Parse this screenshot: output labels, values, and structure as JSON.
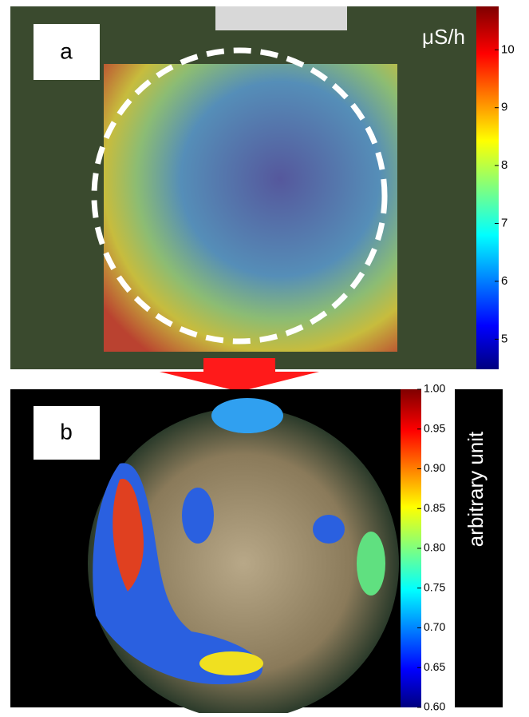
{
  "panels": [
    {
      "label": "a",
      "unit": "μS/h",
      "colorbar": {
        "lim": [
          4.48,
          10.75
        ],
        "ticks": [
          5,
          6,
          7,
          8,
          9,
          10
        ]
      }
    },
    {
      "label": "b",
      "unit": "arbitrary unit",
      "colorbar": {
        "lim": [
          0.6,
          1.0
        ],
        "ticks": [
          {
            "value": 0.6,
            "label": "0.60"
          },
          0.65,
          {
            "value": 0.7,
            "label": "0.70"
          },
          0.75,
          {
            "value": 0.8,
            "label": "0.80"
          },
          0.85,
          {
            "value": 0.9,
            "label": "0.90"
          },
          0.95,
          {
            "value": 1.0,
            "label": "1.00"
          }
        ]
      }
    }
  ]
}
